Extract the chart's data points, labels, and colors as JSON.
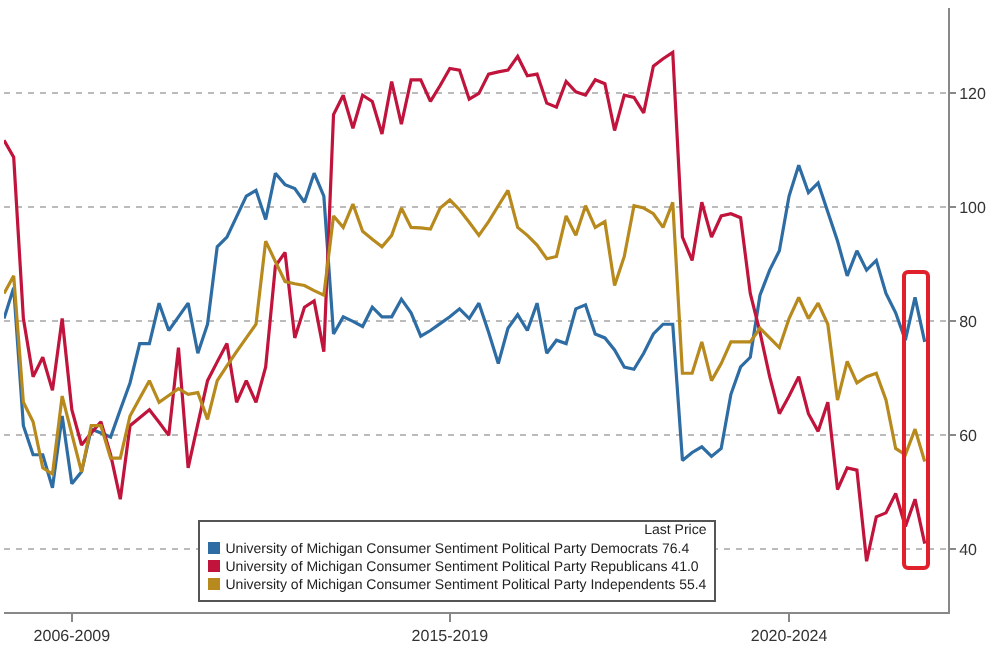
{
  "chart_data": {
    "type": "line",
    "legend_title": "Last Price",
    "categories": [
      null,
      null,
      null,
      null,
      null,
      null,
      null,
      "2006-2009",
      null,
      null,
      null,
      null,
      null,
      null,
      null,
      null,
      null,
      null,
      null,
      null,
      null,
      null,
      null,
      null,
      null,
      null,
      null,
      null,
      null,
      null,
      null,
      null,
      null,
      null,
      null,
      null,
      null,
      null,
      null,
      null,
      null,
      null,
      null,
      null,
      null,
      null,
      "2015-2019",
      null,
      null,
      null,
      null,
      null,
      null,
      null,
      null,
      null,
      null,
      null,
      null,
      null,
      null,
      null,
      null,
      null,
      null,
      null,
      null,
      null,
      null,
      null,
      null,
      null,
      null,
      null,
      null,
      null,
      null,
      null,
      null,
      null,
      null,
      "2020-2024",
      null,
      null,
      null,
      null,
      null,
      null,
      null,
      null,
      null,
      null,
      null,
      null,
      null,
      null
    ],
    "ylim": [
      29,
      135
    ],
    "yticks": [
      40,
      60,
      80,
      100,
      120
    ],
    "grid": "y",
    "legend": "bottom left",
    "line_style": "solid",
    "series": [
      {
        "name": "University of Michigan Consumer Sentiment Political Party Democrats 76.4",
        "color": "#2e6da4",
        "values": [
          80.5,
          85.9,
          61.7,
          56.6,
          56.6,
          50.8,
          63.4,
          51.5,
          53.6,
          61.1,
          60.4,
          59.7,
          64.5,
          69.2,
          76.1,
          76.1,
          83.2,
          78.4,
          80.8,
          83.2,
          74.4,
          79.5,
          93.1,
          94.8,
          98.4,
          102.0,
          103.0,
          97.9,
          106.0,
          104.0,
          103.3,
          100.9,
          106.0,
          102.0,
          77.8,
          80.8,
          80.0,
          79.1,
          82.5,
          80.8,
          80.8,
          83.9,
          81.5,
          77.4,
          78.4,
          79.6,
          80.8,
          82.2,
          80.5,
          83.2,
          78.1,
          72.6,
          78.8,
          81.2,
          78.4,
          83.2,
          74.4,
          76.7,
          76.1,
          82.2,
          82.9,
          77.8,
          77.1,
          75.0,
          72.0,
          71.6,
          74.4,
          77.8,
          79.5,
          79.5,
          55.6,
          57.0,
          58.0,
          56.3,
          57.7,
          67.2,
          72.0,
          73.7,
          84.6,
          89.0,
          92.4,
          102.0,
          107.4,
          102.6,
          104.3,
          99.2,
          94.1,
          88.0,
          92.4,
          89.0,
          90.7,
          84.9,
          81.5,
          76.7,
          84.2,
          76.4
        ]
      },
      {
        "name": "University of Michigan Consumer Sentiment Political Party Republicans 41.0",
        "color": "#c0143c",
        "values": [
          111.8,
          108.8,
          80.5,
          70.3,
          73.7,
          67.9,
          80.5,
          64.5,
          58.3,
          60.4,
          62.4,
          56.6,
          48.8,
          61.7,
          63.1,
          64.5,
          62.3,
          60.0,
          75.4,
          54.3,
          62.0,
          69.6,
          72.9,
          76.1,
          65.8,
          69.6,
          65.8,
          72.0,
          89.7,
          92.1,
          77.1,
          82.5,
          83.6,
          74.7,
          116.3,
          119.7,
          113.9,
          119.7,
          118.6,
          112.9,
          122.1,
          114.6,
          122.4,
          122.4,
          118.6,
          121.4,
          124.4,
          124.1,
          119.0,
          120.0,
          123.4,
          123.8,
          124.1,
          126.5,
          123.1,
          123.4,
          118.3,
          117.6,
          122.1,
          120.3,
          119.7,
          122.4,
          121.7,
          113.5,
          119.7,
          119.3,
          116.6,
          124.8,
          126.1,
          127.2,
          94.8,
          90.7,
          100.9,
          94.8,
          98.5,
          98.9,
          98.2,
          84.9,
          78.1,
          70.3,
          63.8,
          66.9,
          70.3,
          63.8,
          60.7,
          65.8,
          50.5,
          54.3,
          53.9,
          37.9,
          45.7,
          46.4,
          49.8,
          44.0,
          48.8,
          41.0
        ]
      },
      {
        "name": "University of Michigan Consumer Sentiment Political Party Independents 55.4",
        "color": "#b88a1e",
        "values": [
          84.9,
          88.0,
          65.8,
          62.4,
          54.3,
          53.2,
          66.9,
          60.2,
          53.6,
          61.7,
          61.7,
          56.0,
          56.0,
          63.4,
          66.5,
          69.6,
          65.8,
          67.0,
          68.2,
          67.2,
          67.5,
          62.8,
          69.6,
          72.2,
          74.7,
          77.1,
          79.5,
          94.1,
          90.5,
          87.0,
          86.6,
          86.3,
          85.4,
          84.6,
          98.5,
          96.5,
          100.6,
          95.8,
          94.4,
          93.1,
          95.1,
          99.9,
          96.5,
          96.4,
          96.2,
          99.9,
          101.3,
          99.6,
          97.4,
          95.1,
          97.5,
          100.3,
          103.0,
          96.5,
          95.1,
          93.4,
          91.0,
          91.4,
          98.5,
          95.1,
          100.3,
          96.5,
          97.5,
          86.3,
          91.4,
          100.3,
          99.9,
          98.9,
          96.5,
          100.9,
          70.9,
          70.9,
          76.4,
          69.6,
          72.6,
          76.4,
          76.4,
          76.4,
          78.8,
          77.1,
          75.4,
          80.5,
          84.2,
          80.5,
          83.2,
          79.5,
          66.2,
          73.0,
          69.2,
          70.3,
          70.9,
          66.2,
          57.7,
          56.6,
          61.1,
          55.4
        ]
      }
    ]
  }
}
